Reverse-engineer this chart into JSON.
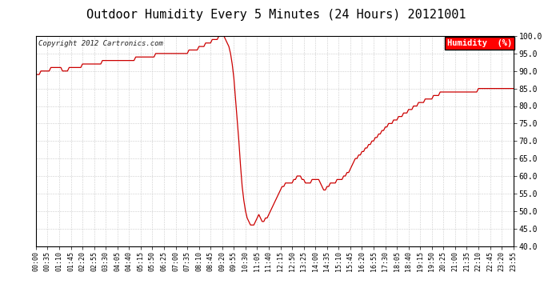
{
  "title": "Outdoor Humidity Every 5 Minutes (24 Hours) 20121001",
  "copyright": "Copyright 2012 Cartronics.com",
  "legend_label": "Humidity  (%)",
  "line_color": "#cc0000",
  "bg_color": "#ffffff",
  "grid_color": "#cccccc",
  "ylim": [
    40.0,
    100.0
  ],
  "yticks": [
    40.0,
    45.0,
    50.0,
    55.0,
    60.0,
    65.0,
    70.0,
    75.0,
    80.0,
    85.0,
    90.0,
    95.0,
    100.0
  ],
  "humidity_values": [
    89,
    89,
    89,
    90,
    90,
    90,
    90,
    90,
    90,
    91,
    91,
    91,
    91,
    91,
    91,
    91,
    90,
    90,
    90,
    90,
    91,
    91,
    91,
    91,
    91,
    91,
    91,
    91,
    92,
    92,
    92,
    92,
    92,
    92,
    92,
    92,
    92,
    92,
    92,
    92,
    93,
    93,
    93,
    93,
    93,
    93,
    93,
    93,
    93,
    93,
    93,
    93,
    93,
    93,
    93,
    93,
    93,
    93,
    93,
    93,
    94,
    94,
    94,
    94,
    94,
    94,
    94,
    94,
    94,
    94,
    94,
    94,
    95,
    95,
    95,
    95,
    95,
    95,
    95,
    95,
    95,
    95,
    95,
    95,
    95,
    95,
    95,
    95,
    95,
    95,
    95,
    95,
    96,
    96,
    96,
    96,
    96,
    96,
    97,
    97,
    97,
    97,
    98,
    98,
    98,
    98,
    99,
    99,
    99,
    99,
    100,
    100,
    100,
    100,
    99,
    98,
    97,
    95,
    92,
    88,
    82,
    76,
    70,
    63,
    57,
    53,
    50,
    48,
    47,
    46,
    46,
    46,
    47,
    48,
    49,
    48,
    47,
    47,
    48,
    48,
    49,
    50,
    51,
    52,
    53,
    54,
    55,
    56,
    57,
    57,
    58,
    58,
    58,
    58,
    58,
    59,
    59,
    60,
    60,
    60,
    59,
    59,
    58,
    58,
    58,
    58,
    59,
    59,
    59,
    59,
    59,
    58,
    57,
    56,
    56,
    57,
    57,
    58,
    58,
    58,
    58,
    59,
    59,
    59,
    59,
    60,
    60,
    61,
    61,
    62,
    63,
    64,
    65,
    65,
    66,
    66,
    67,
    67,
    68,
    68,
    69,
    69,
    70,
    70,
    71,
    71,
    72,
    72,
    73,
    73,
    74,
    74,
    75,
    75,
    75,
    76,
    76,
    76,
    77,
    77,
    77,
    78,
    78,
    78,
    79,
    79,
    79,
    80,
    80,
    80,
    81,
    81,
    81,
    81,
    82,
    82,
    82,
    82,
    82,
    83,
    83,
    83,
    83,
    84,
    84,
    84,
    84,
    84,
    84,
    84,
    84,
    84,
    84,
    84,
    84,
    84,
    84,
    84,
    84,
    84,
    84,
    84,
    84,
    84,
    84,
    84,
    85,
    85,
    85,
    85,
    85,
    85,
    85,
    85,
    85,
    85,
    85,
    85,
    85,
    85,
    85,
    85,
    85,
    85,
    85,
    85,
    85,
    85,
    85,
    85,
    85,
    85,
    85,
    85,
    85,
    85,
    85,
    85,
    85,
    85,
    85,
    86,
    86,
    86,
    86,
    86,
    86,
    86,
    86,
    86,
    86,
    86,
    86,
    85,
    85,
    85,
    85,
    85,
    85,
    85,
    85,
    85,
    85,
    85,
    85,
    85,
    85,
    85,
    85,
    85,
    85,
    85,
    85,
    85,
    85,
    85,
    85,
    85,
    85,
    85,
    85,
    85,
    85,
    85
  ],
  "xtick_labels": [
    "00:00",
    "00:35",
    "01:10",
    "01:45",
    "02:20",
    "02:55",
    "03:30",
    "04:05",
    "04:40",
    "05:15",
    "05:50",
    "06:25",
    "07:00",
    "07:35",
    "08:10",
    "08:45",
    "09:20",
    "09:55",
    "10:30",
    "11:05",
    "11:40",
    "12:15",
    "12:50",
    "13:25",
    "14:00",
    "14:35",
    "15:10",
    "15:45",
    "16:20",
    "16:55",
    "17:30",
    "18:05",
    "18:40",
    "19:15",
    "19:50",
    "20:25",
    "21:00",
    "21:35",
    "22:10",
    "22:45",
    "23:20",
    "23:55"
  ],
  "title_fontsize": 11,
  "ytick_fontsize": 7,
  "xtick_fontsize": 6,
  "copyright_fontsize": 6.5,
  "legend_fontsize": 7.5
}
